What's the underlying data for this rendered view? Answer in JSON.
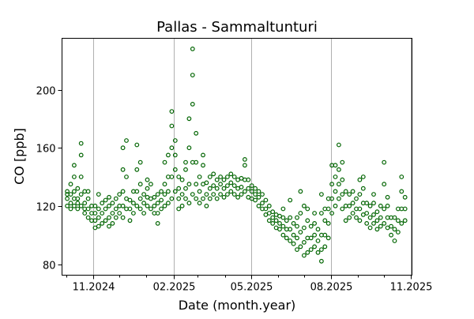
{
  "chart_data": {
    "type": "scatter",
    "title": "Pallas - Sammaltunturi",
    "xlabel": "Date (month.year)",
    "ylabel": "CO [ppb]",
    "xlim": [
      "2024-09-26",
      "2025-11-02"
    ],
    "ylim": [
      72.4,
      235.3
    ],
    "x_ticks": [
      {
        "date": "2024-11-01",
        "label": "11.2024"
      },
      {
        "date": "2025-02-01",
        "label": "02.2025"
      },
      {
        "date": "2025-05-01",
        "label": "05.2025"
      },
      {
        "date": "2025-08-01",
        "label": "08.2025"
      },
      {
        "date": "2025-11-01",
        "label": "11.2025"
      }
    ],
    "x_minor_ticks": [
      "2024-10-01",
      "2024-12-01",
      "2025-01-01",
      "2025-03-01",
      "2025-04-01",
      "2025-06-01",
      "2025-07-01",
      "2025-09-01",
      "2025-10-01"
    ],
    "y_ticks": [
      80,
      120,
      160,
      200
    ],
    "grid": "vertical lines at major x ticks",
    "marker": "open circle",
    "color": "#006400",
    "grid_color": "#b0b0b0",
    "points": [
      [
        "2024-10-02",
        [
          125,
          130,
          120,
          128
        ]
      ],
      [
        "2024-10-06",
        [
          122,
          128,
          135,
          118
        ]
      ],
      [
        "2024-10-10",
        [
          120,
          130,
          140,
          148,
          125
        ]
      ],
      [
        "2024-10-14",
        [
          118,
          125,
          132,
          122
        ]
      ],
      [
        "2024-10-18",
        [
          120,
          128,
          140,
          155,
          163
        ]
      ],
      [
        "2024-10-22",
        [
          115,
          122,
          130,
          118
        ]
      ],
      [
        "2024-10-26",
        [
          112,
          118,
          125,
          130
        ]
      ],
      [
        "2024-10-30",
        [
          110,
          115,
          120
        ]
      ],
      [
        "2024-11-03",
        [
          105,
          110,
          115,
          120
        ]
      ],
      [
        "2024-11-07",
        [
          106,
          112,
          118,
          128
        ]
      ],
      [
        "2024-11-11",
        [
          108,
          115,
          122
        ]
      ],
      [
        "2024-11-15",
        [
          110,
          118,
          124
        ]
      ],
      [
        "2024-11-19",
        [
          106,
          112,
          120,
          126
        ]
      ],
      [
        "2024-11-23",
        [
          108,
          115,
          122
        ]
      ],
      [
        "2024-11-27",
        [
          112,
          118,
          125
        ]
      ],
      [
        "2024-12-01",
        [
          115,
          120,
          128
        ]
      ],
      [
        "2024-12-05",
        [
          112,
          120,
          130,
          145,
          160
        ]
      ],
      [
        "2024-12-09",
        [
          118,
          125,
          140,
          165
        ]
      ],
      [
        "2024-12-13",
        [
          110,
          118,
          124
        ]
      ],
      [
        "2024-12-17",
        [
          115,
          122,
          130
        ]
      ],
      [
        "2024-12-21",
        [
          120,
          130,
          145,
          162
        ]
      ],
      [
        "2024-12-25",
        [
          118,
          125,
          135,
          150
        ]
      ],
      [
        "2024-12-29",
        [
          115,
          122,
          128
        ]
      ],
      [
        "2025-01-02",
        [
          120,
          126,
          132,
          138
        ]
      ],
      [
        "2025-01-06",
        [
          118,
          125,
          135
        ]
      ],
      [
        "2025-01-10",
        [
          115,
          120,
          126
        ]
      ],
      [
        "2025-01-14",
        [
          108,
          115,
          122,
          128
        ]
      ],
      [
        "2025-01-18",
        [
          118,
          124,
          130
        ]
      ],
      [
        "2025-01-22",
        [
          120,
          128,
          135,
          150
        ]
      ],
      [
        "2025-01-26",
        [
          122,
          130,
          140,
          155
        ]
      ],
      [
        "2025-01-30",
        [
          125,
          140,
          160,
          185,
          175
        ]
      ],
      [
        "2025-02-03",
        [
          130,
          145,
          165,
          155
        ]
      ],
      [
        "2025-02-07",
        [
          118,
          125,
          132,
          140
        ]
      ],
      [
        "2025-02-11",
        [
          120,
          128,
          138
        ]
      ],
      [
        "2025-02-15",
        [
          125,
          132,
          145,
          150
        ]
      ],
      [
        "2025-02-19",
        [
          122,
          135,
          160,
          180
        ]
      ],
      [
        "2025-02-23",
        [
          128,
          150,
          190,
          210,
          228
        ]
      ],
      [
        "2025-02-27",
        [
          125,
          135,
          150,
          170
        ]
      ],
      [
        "2025-03-03",
        [
          122,
          130,
          140
        ]
      ],
      [
        "2025-03-07",
        [
          125,
          135,
          148,
          155
        ]
      ],
      [
        "2025-03-11",
        [
          120,
          128,
          136
        ]
      ],
      [
        "2025-03-15",
        [
          125,
          132,
          140
        ]
      ],
      [
        "2025-03-19",
        [
          128,
          134,
          142
        ]
      ],
      [
        "2025-03-23",
        [
          125,
          132,
          138
        ]
      ],
      [
        "2025-03-27",
        [
          128,
          135,
          140
        ]
      ],
      [
        "2025-03-31",
        [
          126,
          132,
          138
        ]
      ],
      [
        "2025-04-04",
        [
          128,
          134,
          140
        ]
      ],
      [
        "2025-04-08",
        [
          130,
          136,
          142
        ]
      ],
      [
        "2025-04-12",
        [
          128,
          134,
          140
        ]
      ],
      [
        "2025-04-16",
        [
          126,
          132,
          138
        ]
      ],
      [
        "2025-04-20",
        [
          128,
          133,
          139
        ]
      ],
      [
        "2025-04-24",
        [
          130,
          138,
          148,
          152
        ]
      ],
      [
        "2025-04-28",
        [
          126,
          132,
          138
        ]
      ],
      [
        "2025-05-02",
        [
          125,
          130,
          134
        ]
      ],
      [
        "2025-05-06",
        [
          124,
          128,
          132
        ]
      ],
      [
        "2025-05-10",
        [
          120,
          126,
          130
        ]
      ],
      [
        "2025-05-14",
        [
          118,
          122,
          128
        ]
      ],
      [
        "2025-05-18",
        [
          114,
          118,
          124
        ]
      ],
      [
        "2025-05-22",
        [
          110,
          115,
          120
        ]
      ],
      [
        "2025-05-26",
        [
          108,
          112,
          116
        ]
      ],
      [
        "2025-05-30",
        [
          105,
          110,
          114
        ]
      ],
      [
        "2025-06-03",
        [
          104,
          108,
          113
        ]
      ],
      [
        "2025-06-07",
        [
          100,
          106,
          112,
          118
        ]
      ],
      [
        "2025-06-11",
        [
          98,
          104,
          110
        ]
      ],
      [
        "2025-06-15",
        [
          96,
          104,
          112,
          124
        ]
      ],
      [
        "2025-06-19",
        [
          94,
          100,
          108
        ]
      ],
      [
        "2025-06-23",
        [
          90,
          98,
          106,
          112
        ]
      ],
      [
        "2025-06-27",
        [
          92,
          102,
          115,
          130
        ]
      ],
      [
        "2025-07-01",
        [
          86,
          95,
          105,
          120
        ]
      ],
      [
        "2025-07-05",
        [
          88,
          98,
          110,
          118
        ]
      ],
      [
        "2025-07-09",
        [
          90,
          98,
          106
        ]
      ],
      [
        "2025-07-13",
        [
          92,
          100,
          108,
          115
        ]
      ],
      [
        "2025-07-17",
        [
          88,
          96,
          104
        ]
      ],
      [
        "2025-07-21",
        [
          82,
          90,
          100,
          115,
          128
        ]
      ],
      [
        "2025-07-25",
        [
          92,
          100,
          110,
          118
        ]
      ],
      [
        "2025-07-29",
        [
          98,
          108,
          118,
          125
        ]
      ],
      [
        "2025-08-02",
        [
          115,
          125,
          135,
          148
        ]
      ],
      [
        "2025-08-06",
        [
          120,
          130,
          140,
          148
        ]
      ],
      [
        "2025-08-10",
        [
          125,
          135,
          145,
          162
        ]
      ],
      [
        "2025-08-14",
        [
          118,
          128,
          138,
          150
        ]
      ],
      [
        "2025-08-18",
        [
          110,
          120,
          130
        ]
      ],
      [
        "2025-08-22",
        [
          112,
          120,
          128
        ]
      ],
      [
        "2025-08-26",
        [
          115,
          122,
          130
        ]
      ],
      [
        "2025-08-30",
        [
          112,
          118,
          125
        ]
      ],
      [
        "2025-09-03",
        [
          110,
          118,
          128,
          138
        ]
      ],
      [
        "2025-09-07",
        [
          114,
          122,
          132,
          140
        ]
      ],
      [
        "2025-09-11",
        [
          108,
          115,
          122
        ]
      ],
      [
        "2025-09-15",
        [
          105,
          112,
          120
        ]
      ],
      [
        "2025-09-19",
        [
          108,
          114,
          122,
          128
        ]
      ],
      [
        "2025-09-23",
        [
          104,
          110,
          116
        ]
      ],
      [
        "2025-09-27",
        [
          106,
          112,
          120
        ]
      ],
      [
        "2025-10-01",
        [
          108,
          118,
          135,
          150
        ]
      ],
      [
        "2025-10-05",
        [
          105,
          112,
          120,
          126
        ]
      ],
      [
        "2025-10-09",
        [
          100,
          106,
          112
        ]
      ],
      [
        "2025-10-13",
        [
          96,
          104,
          112
        ]
      ],
      [
        "2025-10-17",
        [
          102,
          110,
          118
        ]
      ],
      [
        "2025-10-21",
        [
          108,
          118,
          130,
          140
        ]
      ],
      [
        "2025-10-25",
        [
          110,
          118,
          126
        ]
      ]
    ]
  }
}
